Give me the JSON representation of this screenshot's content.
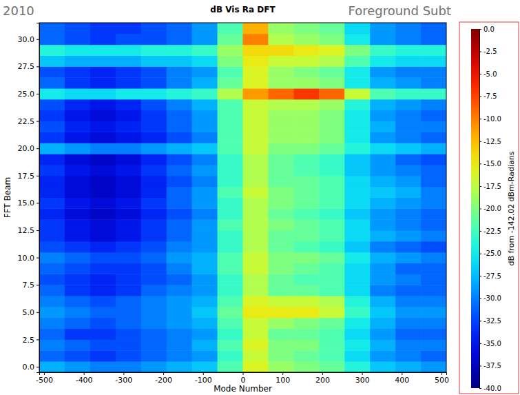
{
  "chart_data": {
    "type": "heatmap",
    "title": "dB Vis Ra DFT",
    "x_label": "Mode Number",
    "y_label": "FFT Beam",
    "annotations": [
      "2010",
      "Foreground Subt"
    ],
    "xlim": [
      -512,
      512
    ],
    "xticks": [
      -500,
      -400,
      -300,
      -200,
      -100,
      0,
      100,
      200,
      300,
      400,
      500
    ],
    "ylim": [
      -0.5,
      31.5
    ],
    "yticks": [
      {
        "value": 0,
        "label": "0.0"
      },
      2.5,
      {
        "value": 5,
        "label": "5.0"
      },
      7.5,
      {
        "value": 10,
        "label": "10.0"
      },
      12.5,
      {
        "value": 15,
        "label": "15.0"
      },
      17.5,
      {
        "value": 20,
        "label": "20.0"
      },
      22.5,
      {
        "value": 25,
        "label": "25.0"
      },
      27.5,
      {
        "value": 30,
        "label": "30.0"
      }
    ],
    "x_bins": [
      -512,
      -448,
      -384,
      -320,
      -256,
      -192,
      -128,
      -64,
      0,
      64,
      128,
      192,
      256,
      320,
      384,
      448,
      512
    ],
    "y_bins": [
      -0.5,
      0.5,
      1.5,
      2.5,
      3.5,
      4.5,
      5.5,
      6.5,
      7.5,
      8.5,
      9.5,
      10.5,
      11.5,
      12.5,
      13.5,
      14.5,
      15.5,
      16.5,
      17.5,
      18.5,
      19.5,
      20.5,
      21.5,
      22.5,
      23.5,
      24.5,
      25.5,
      26.5,
      27.5,
      28.5,
      29.5,
      30.5,
      31.5
    ],
    "values": [
      [
        -28,
        -29,
        -30,
        -30,
        -29,
        -28,
        -27,
        -22,
        -16,
        -19,
        -20,
        -21,
        -24,
        -27,
        -28,
        -29
      ],
      [
        -31,
        -32,
        -33,
        -32,
        -31,
        -30,
        -29,
        -23,
        -17,
        -20,
        -21,
        -22,
        -26,
        -29,
        -30,
        -31
      ],
      [
        -30,
        -31,
        -32,
        -32,
        -31,
        -30,
        -28,
        -22,
        -16,
        -20,
        -20,
        -22,
        -25,
        -28,
        -30,
        -30
      ],
      [
        -31,
        -33,
        -33,
        -32,
        -31,
        -30,
        -29,
        -23,
        -17,
        -21,
        -21,
        -22,
        -26,
        -29,
        -31,
        -31
      ],
      [
        -30,
        -31,
        -32,
        -31,
        -30,
        -29,
        -28,
        -22,
        -17,
        -19,
        -20,
        -21,
        -25,
        -28,
        -30,
        -30
      ],
      [
        -29,
        -30,
        -31,
        -31,
        -30,
        -29,
        -27,
        -21,
        -15,
        -15,
        -15,
        -17,
        -23,
        -27,
        -29,
        -29
      ],
      [
        -30,
        -31,
        -32,
        -31,
        -30,
        -29,
        -28,
        -22,
        -16,
        -17,
        -17,
        -18,
        -24,
        -28,
        -30,
        -30
      ],
      [
        -31,
        -33,
        -34,
        -33,
        -31,
        -30,
        -29,
        -23,
        -18,
        -21,
        -21,
        -22,
        -26,
        -30,
        -31,
        -31
      ],
      [
        -32,
        -33,
        -34,
        -33,
        -32,
        -31,
        -29,
        -23,
        -18,
        -21,
        -22,
        -22,
        -26,
        -29,
        -30,
        -31
      ],
      [
        -31,
        -32,
        -33,
        -33,
        -32,
        -30,
        -28,
        -22,
        -17,
        -20,
        -21,
        -22,
        -26,
        -29,
        -31,
        -31
      ],
      [
        -30,
        -31,
        -32,
        -32,
        -31,
        -29,
        -28,
        -22,
        -17,
        -20,
        -20,
        -21,
        -25,
        -28,
        -29,
        -30
      ],
      [
        -32,
        -33,
        -34,
        -33,
        -32,
        -30,
        -29,
        -23,
        -18,
        -21,
        -22,
        -23,
        -27,
        -30,
        -31,
        -32
      ],
      [
        -33,
        -35,
        -36,
        -35,
        -33,
        -31,
        -29,
        -23,
        -18,
        -21,
        -21,
        -22,
        -26,
        -28,
        -29,
        -30
      ],
      [
        -33,
        -35,
        -36,
        -35,
        -33,
        -31,
        -29,
        -22,
        -18,
        -20,
        -21,
        -22,
        -26,
        -29,
        -30,
        -31
      ],
      [
        -34,
        -36,
        -37,
        -36,
        -34,
        -32,
        -30,
        -23,
        -18,
        -21,
        -22,
        -23,
        -27,
        -29,
        -30,
        -31
      ],
      [
        -33,
        -35,
        -36,
        -35,
        -33,
        -31,
        -29,
        -23,
        -18,
        -20,
        -21,
        -22,
        -26,
        -28,
        -29,
        -30
      ],
      [
        -34,
        -36,
        -37,
        -36,
        -34,
        -31,
        -29,
        -22,
        -17,
        -20,
        -21,
        -22,
        -26,
        -27,
        -28,
        -30
      ],
      [
        -34,
        -36,
        -37,
        -36,
        -34,
        -32,
        -30,
        -23,
        -18,
        -21,
        -21,
        -22,
        -26,
        -28,
        -29,
        -31
      ],
      [
        -33,
        -35,
        -36,
        -35,
        -33,
        -31,
        -29,
        -23,
        -18,
        -21,
        -22,
        -23,
        -27,
        -29,
        -30,
        -31
      ],
      [
        -34,
        -36,
        -37,
        -36,
        -34,
        -32,
        -30,
        -23,
        -18,
        -21,
        -22,
        -23,
        -27,
        -29,
        -31,
        -32
      ],
      [
        -28,
        -29,
        -30,
        -30,
        -29,
        -28,
        -27,
        -22,
        -17,
        -20,
        -20,
        -21,
        -24,
        -26,
        -27,
        -28
      ],
      [
        -33,
        -35,
        -36,
        -35,
        -34,
        -32,
        -30,
        -22,
        -17,
        -19,
        -19,
        -20,
        -25,
        -29,
        -30,
        -31
      ],
      [
        -32,
        -34,
        -35,
        -34,
        -33,
        -31,
        -29,
        -22,
        -17,
        -19,
        -19,
        -20,
        -25,
        -28,
        -30,
        -30
      ],
      [
        -33,
        -35,
        -36,
        -35,
        -33,
        -31,
        -29,
        -22,
        -17,
        -19,
        -19,
        -20,
        -25,
        -29,
        -30,
        -31
      ],
      [
        -32,
        -34,
        -35,
        -34,
        -32,
        -30,
        -28,
        -22,
        -17,
        -18,
        -18,
        -19,
        -24,
        -28,
        -29,
        -30
      ],
      [
        -25,
        -26,
        -26,
        -25,
        -25,
        -24,
        -23,
        -18,
        -11,
        -9,
        -7,
        -9,
        -17,
        -22,
        -23,
        -23
      ],
      [
        -31,
        -33,
        -34,
        -33,
        -32,
        -30,
        -28,
        -21,
        -16,
        -19,
        -19,
        -20,
        -25,
        -28,
        -29,
        -30
      ],
      [
        -32,
        -33,
        -34,
        -33,
        -32,
        -30,
        -29,
        -22,
        -16,
        -19,
        -20,
        -21,
        -25,
        -29,
        -30,
        -30
      ],
      [
        -27,
        -28,
        -28,
        -28,
        -27,
        -27,
        -26,
        -20,
        -15,
        -17,
        -17,
        -18,
        -22,
        -25,
        -26,
        -26
      ],
      [
        -24,
        -25,
        -25,
        -25,
        -24,
        -24,
        -23,
        -19,
        -14,
        -14,
        -15,
        -16,
        -20,
        -23,
        -24,
        -24
      ],
      [
        -31,
        -32,
        -33,
        -32,
        -32,
        -31,
        -29,
        -21,
        -10,
        -18,
        -19,
        -20,
        -25,
        -29,
        -30,
        -31
      ],
      [
        -31,
        -32,
        -33,
        -33,
        -32,
        -31,
        -29,
        -22,
        -12,
        -19,
        -20,
        -21,
        -26,
        -29,
        -30,
        -31
      ]
    ],
    "colorbar": {
      "label": "dB from -142.02 dBm-Radians",
      "lim": [
        -40,
        0
      ],
      "ticks": [
        {
          "value": 0,
          "label": "0.0"
        },
        -2.5,
        {
          "value": -5,
          "label": "-5.0"
        },
        -7.5,
        {
          "value": -10,
          "label": "-10.0"
        },
        -12.5,
        {
          "value": -15,
          "label": "-15.0"
        },
        -17.5,
        {
          "value": -20,
          "label": "-20.0"
        },
        -22.5,
        {
          "value": -25,
          "label": "-25.0"
        },
        -27.5,
        {
          "value": -30,
          "label": "-30.0"
        },
        -32.5,
        {
          "value": -35,
          "label": "-35.0"
        },
        -37.5,
        {
          "value": -40,
          "label": "-40.0"
        }
      ]
    }
  }
}
